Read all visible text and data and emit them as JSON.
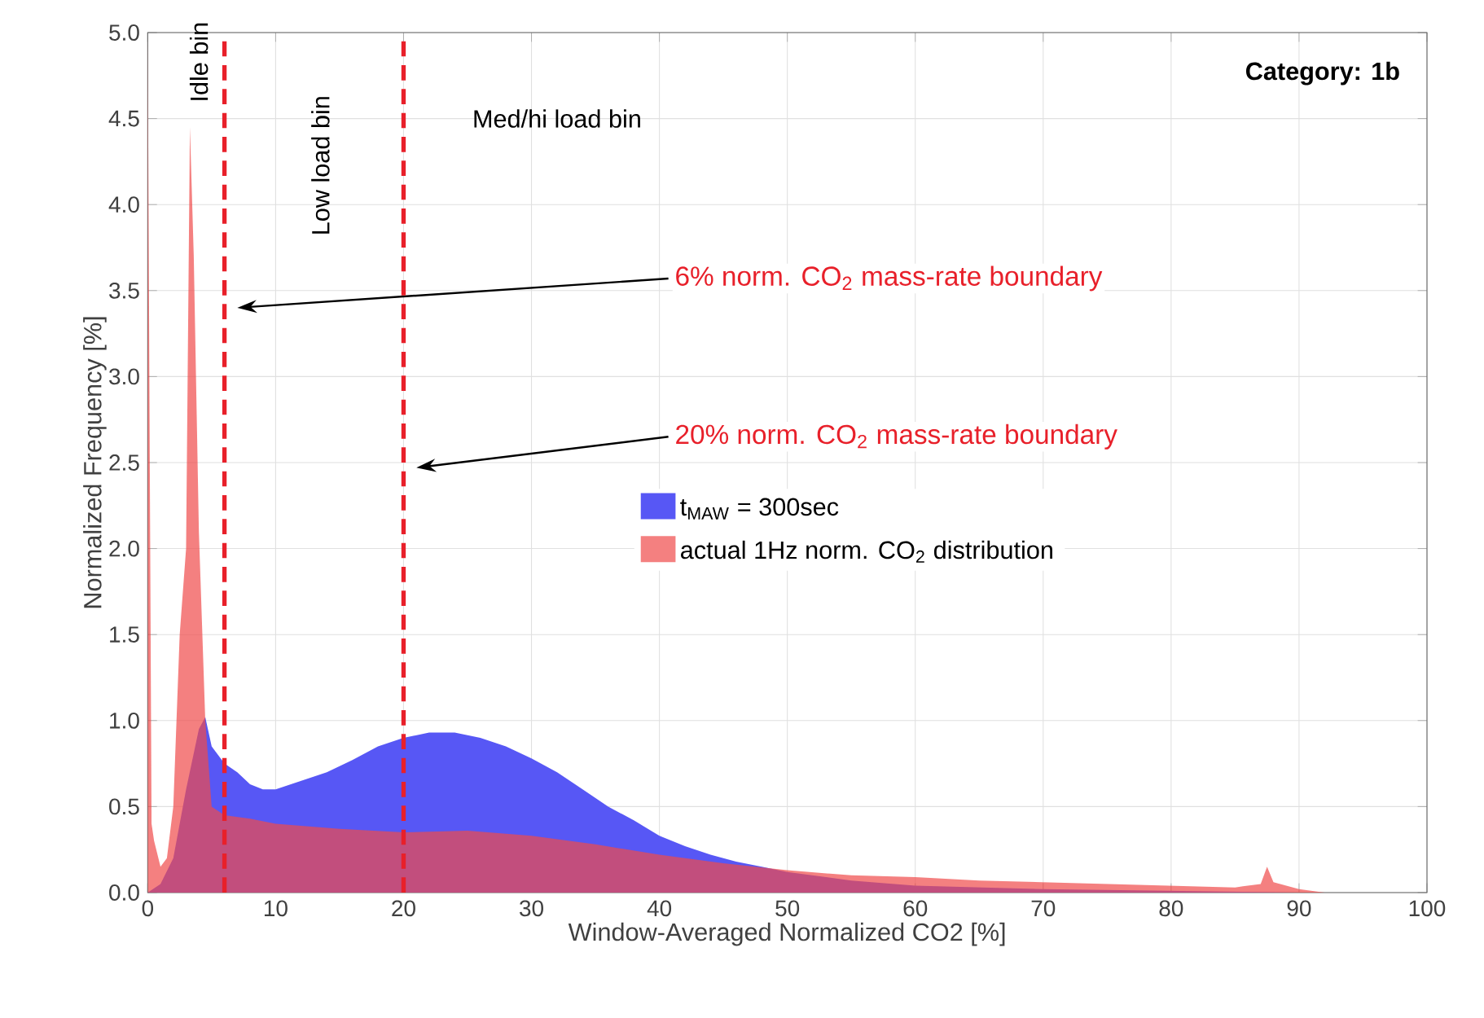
{
  "chart_data": {
    "type": "area",
    "xlabel": "Window-Averaged Normalized CO2 [%]",
    "ylabel": "Normalized Frequency [%]",
    "xlim": [
      0,
      100
    ],
    "ylim": [
      0,
      5
    ],
    "xticks": [
      0,
      10,
      20,
      30,
      40,
      50,
      60,
      70,
      80,
      90,
      100
    ],
    "yticks": [
      {
        "value": 0,
        "label": "0.0"
      },
      {
        "value": 0.5,
        "label": "0.5"
      },
      {
        "value": 1,
        "label": "1.0"
      },
      {
        "value": 1.5,
        "label": "1.5"
      },
      {
        "value": 2,
        "label": "2.0"
      },
      {
        "value": 2.5,
        "label": "2.5"
      },
      {
        "value": 3,
        "label": "3.0"
      },
      {
        "value": 3.5,
        "label": "3.5"
      },
      {
        "value": 4,
        "label": "4.0"
      },
      {
        "value": 4.5,
        "label": "4.5"
      },
      {
        "value": 5,
        "label": "5.0"
      }
    ],
    "grid": true,
    "legend": "right",
    "series": [
      {
        "name": "t$_{MAW}$ = 300sec",
        "color": "#5757f5",
        "x": [
          0,
          1,
          2,
          3,
          4,
          4.5,
          5,
          6,
          7,
          8,
          9,
          10,
          12,
          14,
          16,
          18,
          20,
          22,
          24,
          26,
          28,
          30,
          32,
          34,
          36,
          38,
          40,
          42,
          44,
          46,
          48,
          50,
          55,
          60,
          70,
          80,
          90
        ],
        "values": [
          0,
          0.05,
          0.2,
          0.6,
          0.95,
          1.02,
          0.85,
          0.75,
          0.7,
          0.63,
          0.6,
          0.6,
          0.65,
          0.7,
          0.77,
          0.85,
          0.9,
          0.93,
          0.93,
          0.9,
          0.85,
          0.78,
          0.7,
          0.6,
          0.5,
          0.42,
          0.33,
          0.27,
          0.22,
          0.18,
          0.15,
          0.12,
          0.07,
          0.04,
          0.02,
          0.01,
          0
        ]
      },
      {
        "name": "actual 1Hz norm. CO$_{2}$ distribution",
        "color": "#f04a4a",
        "x": [
          0,
          0.3,
          0.5,
          1,
          1.5,
          2,
          2.5,
          3,
          3.3,
          3.6,
          4,
          4.5,
          5,
          6,
          8,
          10,
          15,
          20,
          25,
          30,
          35,
          40,
          45,
          50,
          55,
          60,
          65,
          70,
          75,
          80,
          85,
          87,
          87.5,
          88,
          90,
          92
        ],
        "values": [
          5,
          0.4,
          0.3,
          0.15,
          0.2,
          0.5,
          1.5,
          2.0,
          4.45,
          3.7,
          2.1,
          1.0,
          0.5,
          0.45,
          0.43,
          0.4,
          0.37,
          0.35,
          0.36,
          0.33,
          0.28,
          0.22,
          0.17,
          0.13,
          0.1,
          0.09,
          0.07,
          0.06,
          0.05,
          0.04,
          0.03,
          0.05,
          0.15,
          0.06,
          0.02,
          0
        ]
      }
    ],
    "ref_lines": [
      {
        "axis": "x",
        "value": 6,
        "label": "6% norm. CO$_{2}$ mass-rate boundary",
        "color": "#e8202a",
        "line_style": "dashed"
      },
      {
        "axis": "x",
        "value": 20,
        "label": "20% norm. CO$_{2}$ mass-rate boundary",
        "color": "#e8202a",
        "line_style": "dashed"
      }
    ],
    "annotations": [
      "Idle bin",
      "Low load bin",
      "Med/hi load bin",
      "Category: 1b"
    ]
  }
}
